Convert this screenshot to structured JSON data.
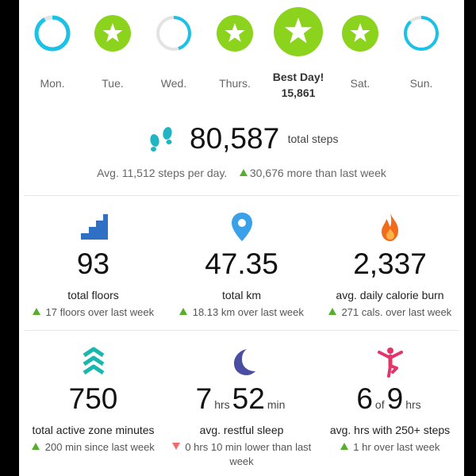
{
  "week": [
    {
      "day": "Mon.",
      "status": "partial",
      "fraction": 0.92
    },
    {
      "day": "Tue.",
      "status": "star"
    },
    {
      "day": "Wed.",
      "status": "partial",
      "fraction": 0.45
    },
    {
      "day": "Thurs.",
      "status": "star"
    },
    {
      "day": "Best Day!",
      "value": "15,861",
      "status": "best"
    },
    {
      "day": "Sat.",
      "status": "star"
    },
    {
      "day": "Sun.",
      "status": "partial",
      "fraction": 0.88
    }
  ],
  "steps": {
    "total": "80,587",
    "unit": "total steps",
    "avg": "Avg. 11,512 steps per day.",
    "delta": "30,676 more than last week"
  },
  "stats": [
    {
      "icon": "stairs-icon",
      "value": "93",
      "label": "total floors",
      "delta": "17 floors over last week",
      "trend": "up"
    },
    {
      "icon": "location-pin-icon",
      "value": "47.35",
      "label": "total km",
      "delta": "18.13 km over last week",
      "trend": "up"
    },
    {
      "icon": "flame-icon",
      "value": "2,337",
      "label": "avg. daily calorie burn",
      "delta": "271 cals. over last week",
      "trend": "up"
    },
    {
      "icon": "chevrons-up-icon",
      "value": "750",
      "label": "total active zone minutes",
      "delta": "200 min since last week",
      "trend": "up"
    },
    {
      "icon": "moon-icon",
      "hours": "7",
      "hours_unit": "hrs",
      "minutes": "52",
      "minutes_unit": "min",
      "label": "avg. restful sleep",
      "delta": "0 hrs 10 min lower than last week",
      "trend": "down"
    },
    {
      "icon": "dancer-icon",
      "count": "6",
      "of": "of",
      "total": "9",
      "total_unit": "hrs",
      "label": "avg. hrs with 250+ steps",
      "delta": "1 hr over last week",
      "trend": "up"
    }
  ],
  "colors": {
    "goal_green": "#8bd31c",
    "ring_blue": "#19c2e6",
    "ring_gray": "#e3e3e3",
    "up_green": "#57ad2c",
    "down_red": "#f26c6c",
    "steps_teal": "#21b5c4",
    "floors_blue": "#2f6fc4",
    "pin_blue": "#3aa0e8",
    "flame_orange": "#f26a1b",
    "azm_teal": "#18b7b0",
    "moon_indigo": "#4b4ea0",
    "dancer_pink": "#e4356b"
  }
}
